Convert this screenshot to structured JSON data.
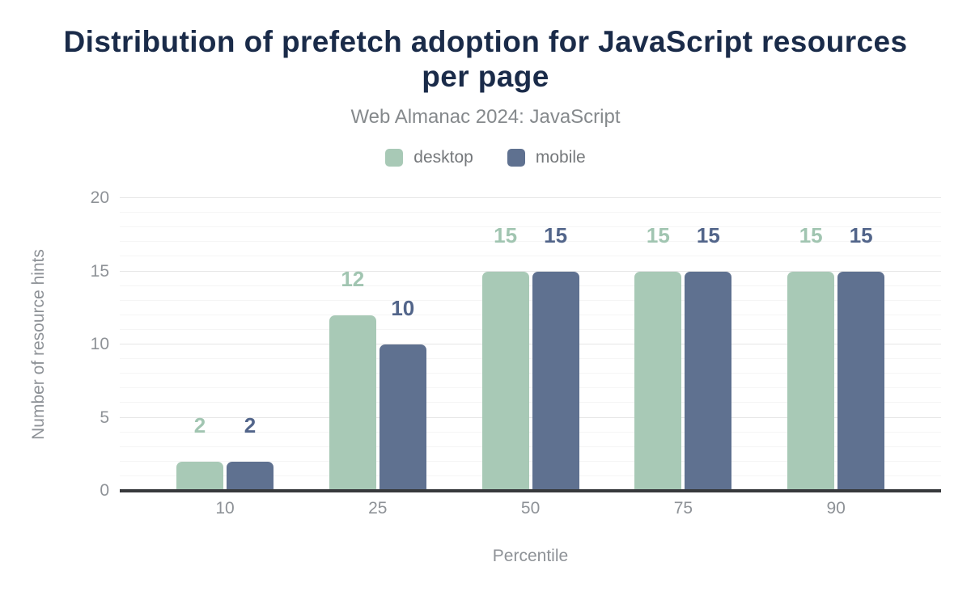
{
  "chart_data": {
    "type": "bar",
    "title": "Distribution of prefetch adoption for JavaScript resources per page",
    "subtitle": "Web Almanac 2024: JavaScript",
    "categories": [
      "10",
      "25",
      "50",
      "75",
      "90"
    ],
    "series": [
      {
        "name": "desktop",
        "color": "#a8c9b6",
        "label_color": "#a1c5b1",
        "values": [
          2,
          12,
          15,
          15,
          15
        ]
      },
      {
        "name": "mobile",
        "color": "#5f7190",
        "label_color": "#52658a",
        "values": [
          2,
          10,
          15,
          15,
          15
        ]
      }
    ],
    "xlabel": "Percentile",
    "ylabel": "Number of resource hints",
    "ylim": [
      0,
      20
    ],
    "yticks": [
      0,
      5,
      10,
      15,
      20
    ],
    "grid": {
      "minor_step": 1,
      "major_step": 5,
      "shown": true
    },
    "legend_position": "top",
    "bar_corner_radius": "rounded-top"
  },
  "colors": {
    "background": "#ffffff",
    "title": "#1a2b49",
    "subtitle": "#85898c",
    "legend_text": "#75787b",
    "axis_text": "#8e9297",
    "axis_line": "#37393c",
    "grid_major": "#e6e6e6",
    "grid_minor": "#f5f5f5"
  }
}
